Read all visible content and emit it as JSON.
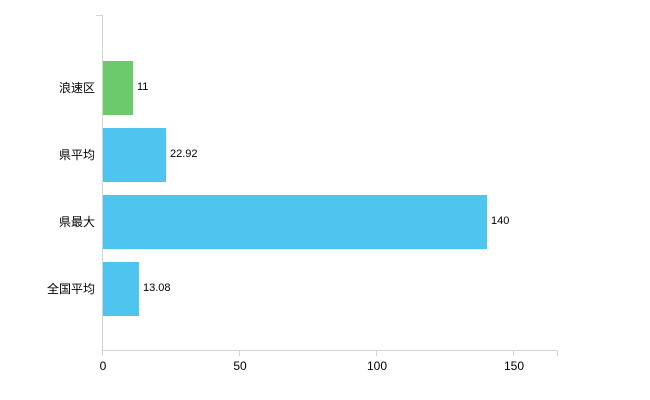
{
  "chart_data": {
    "type": "bar",
    "orientation": "horizontal",
    "title": "",
    "xlabel": "",
    "ylabel": "",
    "categories": [
      "浪速区",
      "県平均",
      "県最大",
      "全国平均"
    ],
    "values": [
      11,
      22.92,
      140,
      13.08
    ],
    "value_labels": [
      "11",
      "22.92",
      "140",
      "13.08"
    ],
    "bar_colors": [
      "#6cc96c",
      "#4dc5ee",
      "#4dc5ee",
      "#4dc5ee"
    ],
    "x_ticks": [
      0,
      50,
      100,
      150
    ],
    "x_tick_labels": [
      "0",
      "50",
      "100",
      "150"
    ],
    "xlim": [
      0,
      166
    ],
    "grid": false,
    "legend": false,
    "colors": {
      "axis": "#d4d4d4",
      "text": "#000000",
      "background": "#ffffff"
    }
  }
}
